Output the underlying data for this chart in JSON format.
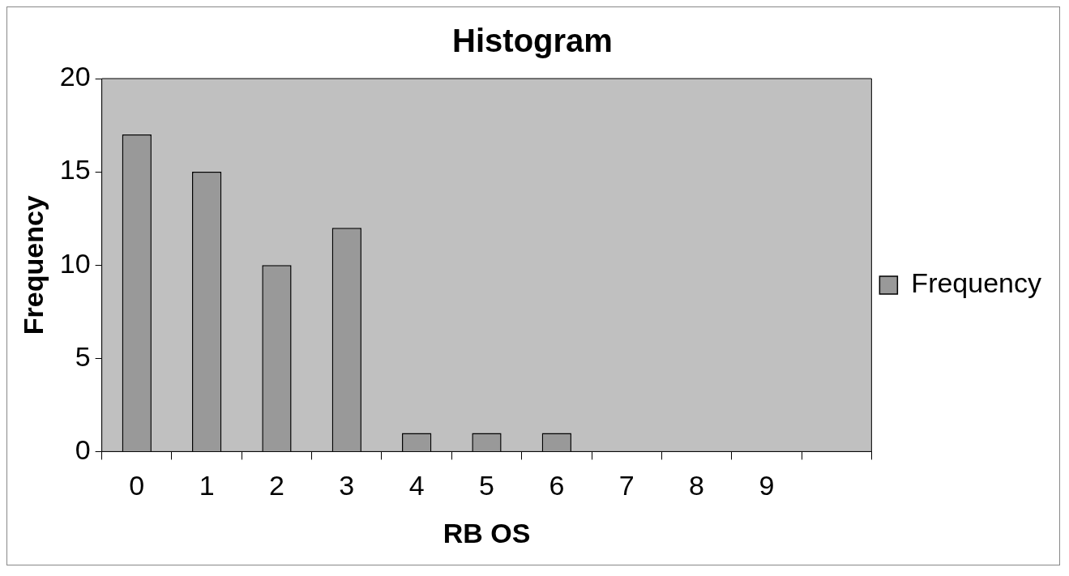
{
  "chart_data": {
    "type": "bar",
    "title": "Histogram",
    "xlabel": "RB OS",
    "ylabel": "Frequency",
    "categories": [
      "0",
      "1",
      "2",
      "3",
      "4",
      "5",
      "6",
      "7",
      "8",
      "9",
      null
    ],
    "series": [
      {
        "name": "Frequency",
        "color": "#999999",
        "values": [
          17,
          15,
          10,
          12,
          1,
          1,
          1,
          0,
          0,
          0,
          0
        ]
      }
    ],
    "ylim": [
      0,
      20
    ],
    "yticks": [
      0,
      5,
      10,
      15,
      20
    ],
    "grid": false,
    "legend": "right"
  }
}
